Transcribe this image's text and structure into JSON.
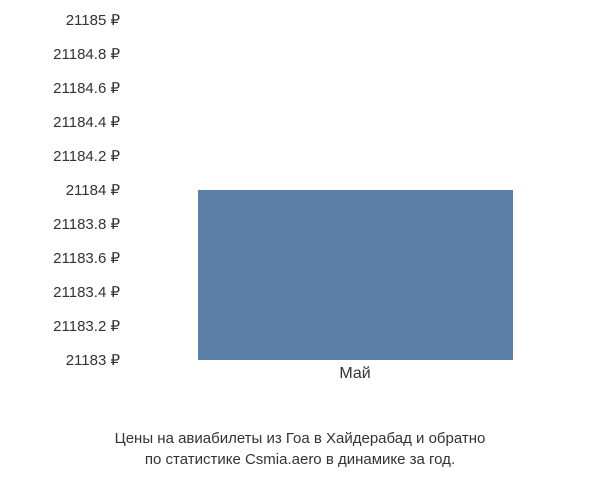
{
  "chart": {
    "type": "bar",
    "background_color": "#ffffff",
    "text_color": "#333333",
    "label_fontsize": 15,
    "y_axis": {
      "min": 21183,
      "max": 21185,
      "step": 0.2,
      "ticks": [
        {
          "value": 21185,
          "label": "21185 ₽",
          "position": 0
        },
        {
          "value": 21184.8,
          "label": "21184.8 ₽",
          "position": 10
        },
        {
          "value": 21184.6,
          "label": "21184.6 ₽",
          "position": 20
        },
        {
          "value": 21184.4,
          "label": "21184.4 ₽",
          "position": 30
        },
        {
          "value": 21184.2,
          "label": "21184.2 ₽",
          "position": 40
        },
        {
          "value": 21184,
          "label": "21184 ₽",
          "position": 50
        },
        {
          "value": 21183.8,
          "label": "21183.8 ₽",
          "position": 60
        },
        {
          "value": 21183.6,
          "label": "21183.6 ₽",
          "position": 70
        },
        {
          "value": 21183.4,
          "label": "21183.4 ₽",
          "position": 80
        },
        {
          "value": 21183.2,
          "label": "21183.2 ₽",
          "position": 90
        },
        {
          "value": 21183,
          "label": "21183 ₽",
          "position": 100
        }
      ]
    },
    "bars": [
      {
        "label": "Май",
        "value": 21184,
        "color": "#5b7fa6",
        "x_percent": 15,
        "width_percent": 70,
        "height_percent": 50
      }
    ],
    "caption_lines": [
      "Цены на авиабилеты из Гоа в Хайдерабад и обратно",
      "по статистике Csmia.aero в динамике за год."
    ]
  }
}
